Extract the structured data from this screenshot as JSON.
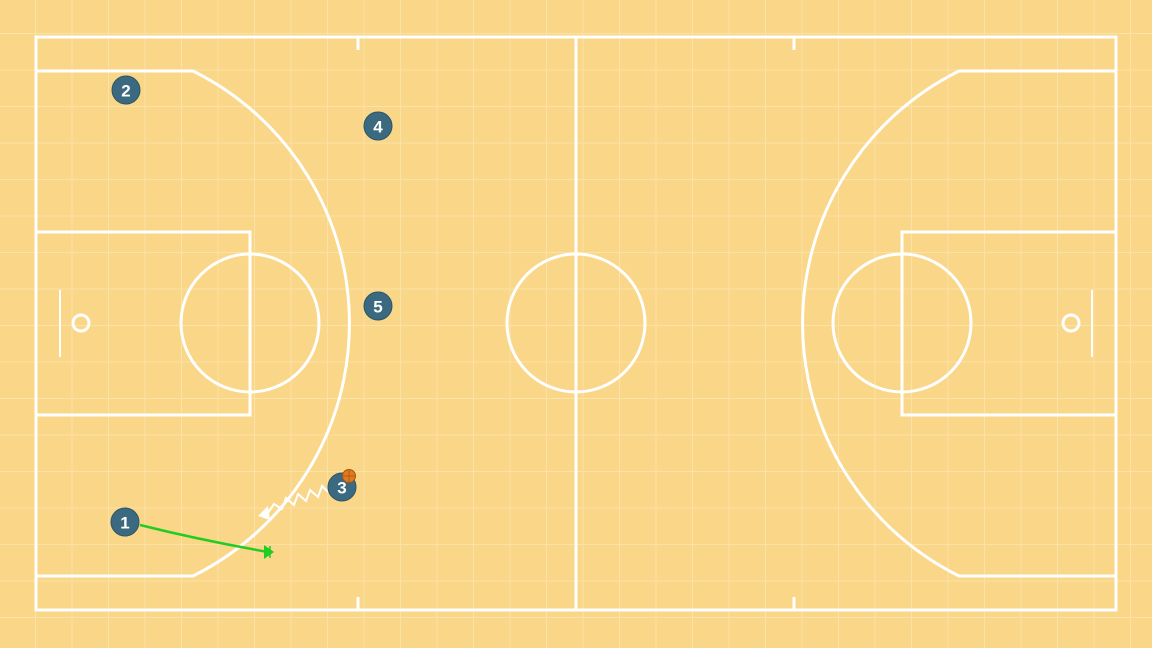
{
  "colors": {
    "floor": "#f9d688",
    "grid": "#fbe3a8",
    "lines": "#ffffff",
    "player": "#3b6a80",
    "pass": "#22cc22",
    "ball": "#e07a1e"
  },
  "players": [
    {
      "label": "1"
    },
    {
      "label": "2"
    },
    {
      "label": "3",
      "has_ball": true
    },
    {
      "label": "4"
    },
    {
      "label": "5"
    }
  ],
  "actions": [
    {
      "type": "pass",
      "from": "1",
      "style": "green arrow"
    },
    {
      "type": "dribble",
      "from": "3",
      "style": "white zigzag arrow"
    }
  ]
}
